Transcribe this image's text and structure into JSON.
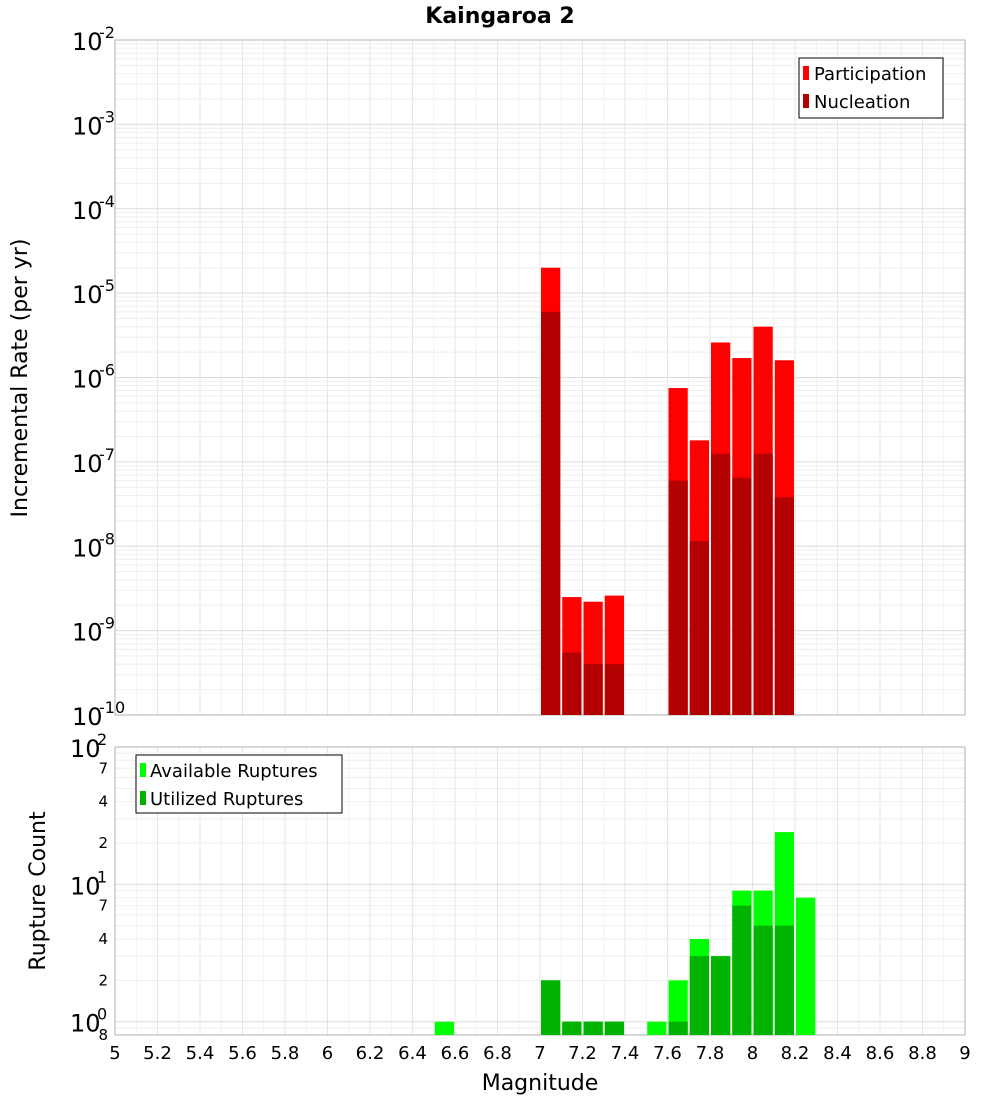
{
  "chart_data": [
    {
      "type": "bar",
      "title": "Kaingaroa 2",
      "xlabel": "",
      "ylabel": "Incremental Rate (per yr)",
      "xlim": [
        5,
        9
      ],
      "ylim": [
        1e-10,
        0.01
      ],
      "yscale": "log",
      "bar_width": 0.1,
      "grid": true,
      "legend_position": "top-right",
      "series": [
        {
          "name": "Participation",
          "color": "#ff0000",
          "x": [
            7.05,
            7.15,
            7.25,
            7.35,
            7.65,
            7.75,
            7.85,
            7.95,
            8.05,
            8.15
          ],
          "values": [
            2e-05,
            2.5e-09,
            2.2e-09,
            2.6e-09,
            7.5e-07,
            1.8e-07,
            2.6e-06,
            1.7e-06,
            4e-06,
            1.6e-06
          ]
        },
        {
          "name": "Nucleation",
          "color": "#b30000",
          "x": [
            7.05,
            7.15,
            7.25,
            7.35,
            7.65,
            7.75,
            7.85,
            7.95,
            8.05,
            8.15
          ],
          "values": [
            6e-06,
            5.5e-10,
            4e-10,
            4e-10,
            6e-08,
            1.15e-08,
            1.25e-07,
            6.5e-08,
            1.25e-07,
            3.8e-08
          ]
        }
      ],
      "y_major_ticks": [
        {
          "base": "10",
          "exp": "-10",
          "value": 1e-10
        },
        {
          "base": "10",
          "exp": "-9",
          "value": 1e-09
        },
        {
          "base": "10",
          "exp": "-8",
          "value": 1e-08
        },
        {
          "base": "10",
          "exp": "-7",
          "value": 1e-07
        },
        {
          "base": "10",
          "exp": "-6",
          "value": 1e-06
        },
        {
          "base": "10",
          "exp": "-5",
          "value": 1e-05
        },
        {
          "base": "10",
          "exp": "-4",
          "value": 0.0001
        },
        {
          "base": "10",
          "exp": "-3",
          "value": 0.001
        },
        {
          "base": "10",
          "exp": "-2",
          "value": 0.01
        }
      ]
    },
    {
      "type": "bar",
      "title": "",
      "xlabel": "Magnitude",
      "ylabel": "Rupture Count",
      "xlim": [
        5,
        9
      ],
      "ylim": [
        0.8,
        100
      ],
      "yscale": "log",
      "bar_width": 0.1,
      "grid": true,
      "legend_position": "top-left",
      "series": [
        {
          "name": "Available Ruptures",
          "color": "#00ff00",
          "x": [
            6.55,
            7.05,
            7.15,
            7.25,
            7.35,
            7.55,
            7.65,
            7.75,
            7.85,
            7.95,
            8.05,
            8.15,
            8.25
          ],
          "values": [
            1,
            2,
            1,
            1,
            1,
            1,
            2,
            4,
            3,
            9,
            9,
            24,
            8
          ]
        },
        {
          "name": "Utilized Ruptures",
          "color": "#00b300",
          "x": [
            7.05,
            7.15,
            7.25,
            7.35,
            7.65,
            7.75,
            7.85,
            7.95,
            8.05,
            8.15
          ],
          "values": [
            2,
            1,
            1,
            1,
            1,
            3,
            3,
            7,
            5,
            5
          ]
        }
      ],
      "y_major_ticks": [
        {
          "base": "10",
          "exp": "0",
          "value": 1
        },
        {
          "base": "10",
          "exp": "1",
          "value": 10
        },
        {
          "base": "10",
          "exp": "2",
          "value": 100
        }
      ],
      "y_minor_ticks": [
        {
          "label": "8",
          "value": 0.8
        },
        {
          "label": "2",
          "value": 2
        },
        {
          "label": "4",
          "value": 4
        },
        {
          "label": "7",
          "value": 7
        },
        {
          "label": "2",
          "value": 20
        },
        {
          "label": "4",
          "value": 40
        },
        {
          "label": "7",
          "value": 70
        }
      ],
      "x_ticks": [
        "5",
        "5.2",
        "5.4",
        "5.6",
        "5.8",
        "6",
        "6.2",
        "6.4",
        "6.6",
        "6.8",
        "7",
        "7.2",
        "7.4",
        "7.6",
        "7.8",
        "8",
        "8.2",
        "8.4",
        "8.6",
        "8.8",
        "9"
      ]
    }
  ]
}
